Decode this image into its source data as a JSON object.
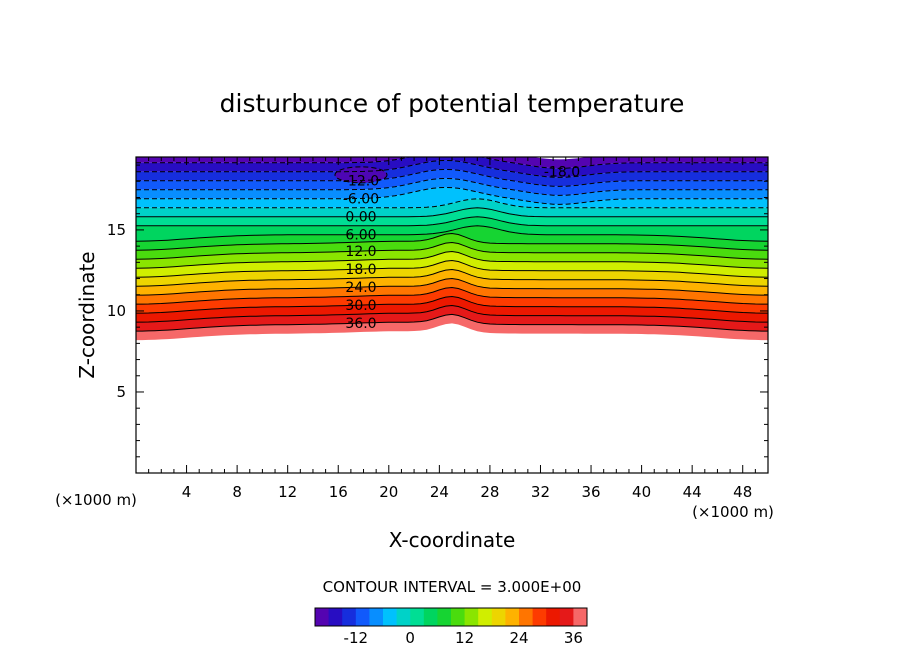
{
  "chart_data": {
    "type": "contour",
    "title": "disturbunce of potential temperature",
    "xlabel": "X-coordinate",
    "ylabel": "Z-coordinate",
    "x_unit": "(×1000 m)",
    "z_unit": "(×1000 m)",
    "xlim": [
      0,
      50
    ],
    "ylim": [
      0,
      19.5
    ],
    "x_ticks": [
      4,
      8,
      12,
      16,
      20,
      24,
      28,
      32,
      36,
      40,
      44,
      48
    ],
    "y_ticks": [
      5,
      10,
      15
    ],
    "contour_interval_text": "CONTOUR INTERVAL = 3.000E+00",
    "contour_interval": 3,
    "value_range": [
      -21,
      39
    ],
    "contour_labels": [
      "-18.0",
      "-12.0",
      "-6.00",
      "0.00",
      "6.00",
      "12.0",
      "18.0",
      "24.0",
      "30.0",
      "36.0"
    ],
    "colorbar": {
      "tick_labels": [
        "-12",
        "0",
        "12",
        "24",
        "36"
      ],
      "tick_values": [
        -12,
        0,
        12,
        24,
        36
      ],
      "range": [
        -21,
        39
      ],
      "colors": [
        "#6a00a8",
        "#1a10c8",
        "#1060ff",
        "#00c0ff",
        "#00e0a0",
        "#00d040",
        "#60e000",
        "#e0f000",
        "#ffb000",
        "#ff4000",
        "#e00000",
        "#ff9090"
      ]
    }
  }
}
